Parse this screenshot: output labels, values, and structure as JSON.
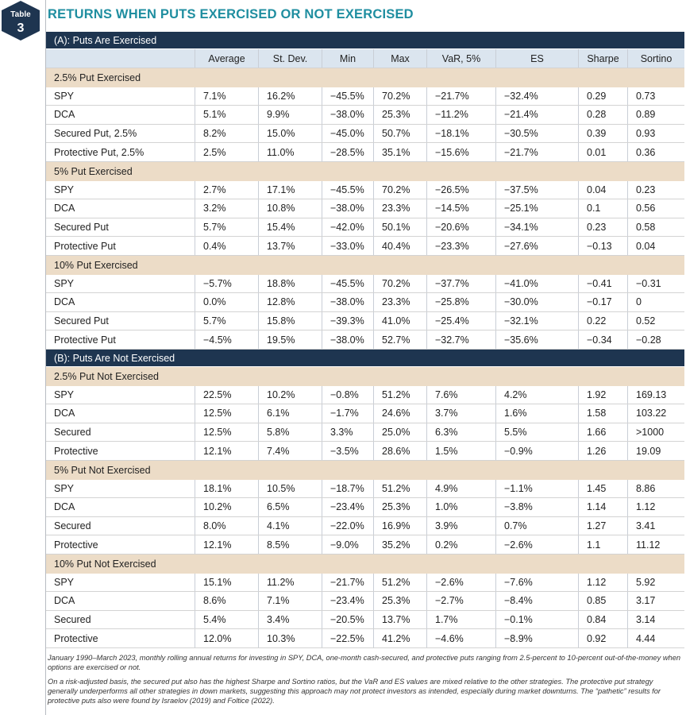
{
  "badge": {
    "label": "Table",
    "number": "3"
  },
  "title": "RETURNS WHEN PUTS EXERCISED OR NOT EXERCISED",
  "columns": [
    "Average",
    "St. Dev.",
    "Min",
    "Max",
    "VaR, 5%",
    "ES",
    "Sharpe",
    "Sortino"
  ],
  "panels": [
    {
      "title": "(A): Puts Are Exercised",
      "groups": [
        {
          "title": "2.5% Put Exercised",
          "rows": [
            [
              "SPY",
              "7.1%",
              "16.2%",
              "−45.5%",
              "70.2%",
              "−21.7%",
              "−32.4%",
              "0.29",
              "0.73"
            ],
            [
              "DCA",
              "5.1%",
              "9.9%",
              "−38.0%",
              "25.3%",
              "−11.2%",
              "−21.4%",
              "0.28",
              "0.89"
            ],
            [
              "Secured Put, 2.5%",
              "8.2%",
              "15.0%",
              "−45.0%",
              "50.7%",
              "−18.1%",
              "−30.5%",
              "0.39",
              "0.93"
            ],
            [
              "Protective Put, 2.5%",
              "2.5%",
              "11.0%",
              "−28.5%",
              "35.1%",
              "−15.6%",
              "−21.7%",
              "0.01",
              "0.36"
            ]
          ]
        },
        {
          "title": "5% Put Exercised",
          "rows": [
            [
              "SPY",
              "2.7%",
              "17.1%",
              "−45.5%",
              "70.2%",
              "−26.5%",
              "−37.5%",
              "0.04",
              "0.23"
            ],
            [
              "DCA",
              "3.2%",
              "10.8%",
              "−38.0%",
              "23.3%",
              "−14.5%",
              "−25.1%",
              "0.1",
              "0.56"
            ],
            [
              "Secured Put",
              "5.7%",
              "15.4%",
              "−42.0%",
              "50.1%",
              "−20.6%",
              "−34.1%",
              "0.23",
              "0.58"
            ],
            [
              "Protective Put",
              "0.4%",
              "13.7%",
              "−33.0%",
              "40.4%",
              "−23.3%",
              "−27.6%",
              "−0.13",
              "0.04"
            ]
          ]
        },
        {
          "title": "10% Put Exercised",
          "rows": [
            [
              "SPY",
              "−5.7%",
              "18.8%",
              "−45.5%",
              "70.2%",
              "−37.7%",
              "−41.0%",
              "−0.41",
              "−0.31"
            ],
            [
              "DCA",
              "0.0%",
              "12.8%",
              "−38.0%",
              "23.3%",
              "−25.8%",
              "−30.0%",
              "−0.17",
              "0"
            ],
            [
              "Secured Put",
              "5.7%",
              "15.8%",
              "−39.3%",
              "41.0%",
              "−25.4%",
              "−32.1%",
              "0.22",
              "0.52"
            ],
            [
              "Protective Put",
              "−4.5%",
              "19.5%",
              "−38.0%",
              "52.7%",
              "−32.7%",
              "−35.6%",
              "−0.34",
              "−0.28"
            ]
          ]
        }
      ]
    },
    {
      "title": "(B): Puts Are Not Exercised",
      "groups": [
        {
          "title": "2.5% Put Not Exercised",
          "rows": [
            [
              "SPY",
              "22.5%",
              "10.2%",
              "−0.8%",
              "51.2%",
              "7.6%",
              "4.2%",
              "1.92",
              "169.13"
            ],
            [
              "DCA",
              "12.5%",
              "6.1%",
              "−1.7%",
              "24.6%",
              "3.7%",
              "1.6%",
              "1.58",
              "103.22"
            ],
            [
              "Secured",
              "12.5%",
              "5.8%",
              "3.3%",
              "25.0%",
              "6.3%",
              "5.5%",
              "1.66",
              ">1000"
            ],
            [
              "Protective",
              "12.1%",
              "7.4%",
              "−3.5%",
              "28.6%",
              "1.5%",
              "−0.9%",
              "1.26",
              "19.09"
            ]
          ]
        },
        {
          "title": "5% Put Not Exercised",
          "rows": [
            [
              "SPY",
              "18.1%",
              "10.5%",
              "−18.7%",
              "51.2%",
              "4.9%",
              "−1.1%",
              "1.45",
              "8.86"
            ],
            [
              "DCA",
              "10.2%",
              "6.5%",
              "−23.4%",
              "25.3%",
              "1.0%",
              "−3.8%",
              "1.14",
              "1.12"
            ],
            [
              "Secured",
              "8.0%",
              "4.1%",
              "−22.0%",
              "16.9%",
              "3.9%",
              "0.7%",
              "1.27",
              "3.41"
            ],
            [
              "Protective",
              "12.1%",
              "8.5%",
              "−9.0%",
              "35.2%",
              "0.2%",
              "−2.6%",
              "1.1",
              "11.12"
            ]
          ]
        },
        {
          "title": "10% Put Not Exercised",
          "rows": [
            [
              "SPY",
              "15.1%",
              "11.2%",
              "−21.7%",
              "51.2%",
              "−2.6%",
              "−7.6%",
              "1.12",
              "5.92"
            ],
            [
              "DCA",
              "8.6%",
              "7.1%",
              "−23.4%",
              "25.3%",
              "−2.7%",
              "−8.4%",
              "0.85",
              "3.17"
            ],
            [
              "Secured",
              "5.4%",
              "3.4%",
              "−20.5%",
              "13.7%",
              "1.7%",
              "−0.1%",
              "0.84",
              "3.14"
            ],
            [
              "Protective",
              "12.0%",
              "10.3%",
              "−22.5%",
              "41.2%",
              "−4.6%",
              "−8.9%",
              "0.92",
              "4.44"
            ]
          ]
        }
      ]
    }
  ],
  "notes": [
    "January 1990–March 2023, monthly rolling annual returns for investing in SPY, DCA, one-month cash-secured, and protective puts ranging from 2.5-percent to 10-percent out-of-the-money when options are exercised or not.",
    "On a risk-adjusted basis, the secured put also has the highest Sharpe and Sortino ratios, but the VaR and ES values are mixed relative to the other strategies. The protective put strategy generally underperforms all other strategies in down markets, suggesting this approach may not protect investors as intended, especially during market downturns. The “pathetic” results for protective puts also were found by Israelov (2019) and Foltice (2022)."
  ]
}
